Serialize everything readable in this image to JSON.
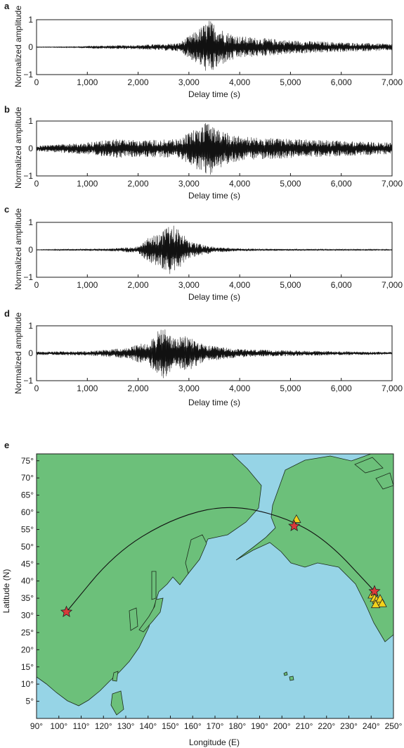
{
  "seismograms": [
    {
      "letter": "a",
      "ylabel": "Normalized amplitude",
      "xlabel": "Delay time (s)"
    },
    {
      "letter": "b",
      "ylabel": "Normalized amplitude",
      "xlabel": "Delay time (s)"
    },
    {
      "letter": "c",
      "ylabel": "Normalized amplitude",
      "xlabel": "Delay time (s)"
    },
    {
      "letter": "d",
      "ylabel": "Normalized amplitude",
      "xlabel": "Delay time (s)"
    }
  ],
  "map": {
    "letter": "e",
    "xlabel": "Longitude (E)",
    "ylabel": "Latitude (N)",
    "colors": {
      "ocean": "#96d4e6",
      "land": "#6cc07a",
      "source_star": "#d93a3a",
      "station_triangle": "#f2d21b"
    }
  },
  "chart_data": [
    {
      "type": "line",
      "panel": "a",
      "xlabel": "Delay time (s)",
      "ylabel": "Normalized amplitude",
      "xlim": [
        0,
        7000
      ],
      "ylim": [
        -1,
        1
      ],
      "xticks": [
        0,
        1000,
        2000,
        3000,
        4000,
        5000,
        6000,
        7000
      ],
      "xtick_labels": [
        "0",
        "1,000",
        "2,000",
        "3,000",
        "4,000",
        "5,000",
        "6,000",
        "7,000"
      ],
      "yticks": [
        -1,
        0,
        1
      ],
      "ytick_labels": [
        "−1",
        "0",
        "1"
      ],
      "envelope": {
        "t": [
          0,
          800,
          1000,
          2000,
          2800,
          3150,
          3400,
          3700,
          4000,
          5000,
          6000,
          7000
        ],
        "amp": [
          0.01,
          0.02,
          0.05,
          0.08,
          0.15,
          0.6,
          1.0,
          0.6,
          0.4,
          0.25,
          0.18,
          0.12
        ]
      }
    },
    {
      "type": "line",
      "panel": "b",
      "xlabel": "Delay time (s)",
      "ylabel": "Normalized amplitude",
      "xlim": [
        0,
        7000
      ],
      "ylim": [
        -1,
        1
      ],
      "xticks": [
        0,
        1000,
        2000,
        3000,
        4000,
        5000,
        6000,
        7000
      ],
      "xtick_labels": [
        "0",
        "1,000",
        "2,000",
        "3,000",
        "4,000",
        "5,000",
        "6,000",
        "7,000"
      ],
      "yticks": [
        -1,
        0,
        1
      ],
      "ytick_labels": [
        "−1",
        "0",
        "1"
      ],
      "envelope": {
        "t": [
          0,
          1000,
          1600,
          2000,
          2800,
          3150,
          3400,
          3700,
          4000,
          5000,
          6000,
          7000
        ],
        "amp": [
          0.1,
          0.22,
          0.35,
          0.3,
          0.35,
          0.75,
          1.0,
          0.6,
          0.45,
          0.35,
          0.28,
          0.22
        ]
      }
    },
    {
      "type": "line",
      "panel": "c",
      "xlabel": "Delay time (s)",
      "ylabel": "Normalized amplitude",
      "xlim": [
        0,
        7000
      ],
      "ylim": [
        -1,
        1
      ],
      "xticks": [
        0,
        1000,
        2000,
        3000,
        4000,
        5000,
        6000,
        7000
      ],
      "xtick_labels": [
        "0",
        "1,000",
        "2,000",
        "3,000",
        "4,000",
        "5,000",
        "6,000",
        "7,000"
      ],
      "yticks": [
        -1,
        0,
        1
      ],
      "ytick_labels": [
        "−1",
        "0",
        "1"
      ],
      "envelope": {
        "t": [
          0,
          700,
          1500,
          2000,
          2200,
          2500,
          2700,
          3000,
          3500,
          4000,
          5000,
          7000
        ],
        "amp": [
          0.01,
          0.03,
          0.05,
          0.12,
          0.45,
          0.7,
          1.0,
          0.3,
          0.1,
          0.05,
          0.03,
          0.02
        ]
      }
    },
    {
      "type": "line",
      "panel": "d",
      "xlabel": "Delay time (s)",
      "ylabel": "Normalized amplitude",
      "xlim": [
        0,
        7000
      ],
      "ylim": [
        -1,
        1
      ],
      "xticks": [
        0,
        1000,
        2000,
        3000,
        4000,
        5000,
        6000,
        7000
      ],
      "xtick_labels": [
        "0",
        "1,000",
        "2,000",
        "3,000",
        "4,000",
        "5,000",
        "6,000",
        "7,000"
      ],
      "yticks": [
        -1,
        0,
        1
      ],
      "ytick_labels": [
        "−1",
        "0",
        "1"
      ],
      "envelope": {
        "t": [
          0,
          1000,
          1800,
          2200,
          2500,
          2700,
          3000,
          3300,
          4000,
          5000,
          6000,
          7000
        ],
        "amp": [
          0.06,
          0.08,
          0.2,
          0.45,
          1.0,
          0.55,
          0.65,
          0.3,
          0.15,
          0.1,
          0.07,
          0.05
        ]
      }
    },
    {
      "type": "scatter",
      "panel": "e",
      "xlabel": "Longitude (E)",
      "ylabel": "Latitude (N)",
      "xlim": [
        90,
        250
      ],
      "ylim": [
        0,
        77
      ],
      "xticks": [
        90,
        100,
        110,
        120,
        130,
        140,
        150,
        160,
        170,
        180,
        190,
        200,
        210,
        220,
        230,
        240,
        250
      ],
      "xtick_labels": [
        "90°",
        "100°",
        "110°",
        "120°",
        "130°",
        "140°",
        "150°",
        "160°",
        "170°",
        "180°",
        "190°",
        "200°",
        "210°",
        "220°",
        "230°",
        "240°",
        "250°"
      ],
      "yticks": [
        5,
        10,
        15,
        20,
        25,
        30,
        35,
        40,
        45,
        50,
        55,
        60,
        65,
        70,
        75
      ],
      "ytick_labels": [
        "5°",
        "10°",
        "15°",
        "20°",
        "25°",
        "30°",
        "35°",
        "40°",
        "45°",
        "50°",
        "55°",
        "60°",
        "65°",
        "70°",
        "75°"
      ],
      "sources": [
        {
          "lon": 103.4,
          "lat": 31.0
        },
        {
          "lon": 205.5,
          "lat": 56.0
        },
        {
          "lon": 241.5,
          "lat": 37.0
        }
      ],
      "stations": [
        {
          "lon": 206.5,
          "lat": 58.0
        },
        {
          "lon": 240.5,
          "lat": 36.0
        },
        {
          "lon": 241.5,
          "lat": 35.0
        },
        {
          "lon": 242.5,
          "lat": 34.5
        },
        {
          "lon": 243.5,
          "lat": 33.8
        },
        {
          "lon": 244.0,
          "lat": 34.8
        },
        {
          "lon": 245.0,
          "lat": 33.5
        },
        {
          "lon": 242.0,
          "lat": 33.2
        }
      ],
      "great_circle": [
        [
          103.4,
          31.0
        ],
        [
          125,
          48
        ],
        [
          150,
          58
        ],
        [
          175,
          62.3
        ],
        [
          200,
          59
        ],
        [
          220,
          52
        ],
        [
          241.5,
          37.0
        ]
      ]
    }
  ]
}
